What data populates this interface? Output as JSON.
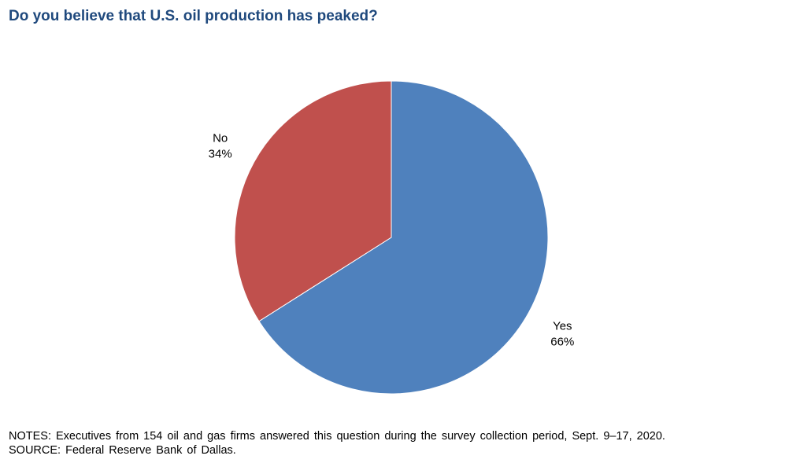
{
  "title": "Do you believe that U.S. oil production has peaked?",
  "chart_data": {
    "type": "pie",
    "title": "Do you believe that U.S. oil production has peaked?",
    "slices": [
      {
        "label": "Yes",
        "value": 66,
        "display": "66%",
        "color": "#4F81BD"
      },
      {
        "label": "No",
        "value": 34,
        "display": "34%",
        "color": "#C0504D"
      }
    ],
    "start_angle_deg": 0,
    "direction": "clockwise",
    "legend": "none"
  },
  "notes": {
    "notes_line": "NOTES: Executives from 154 oil and gas firms answered this question during the survey collection period, Sept. 9–17, 2020.",
    "source_line": "SOURCE: Federal Reserve Bank of Dallas."
  }
}
